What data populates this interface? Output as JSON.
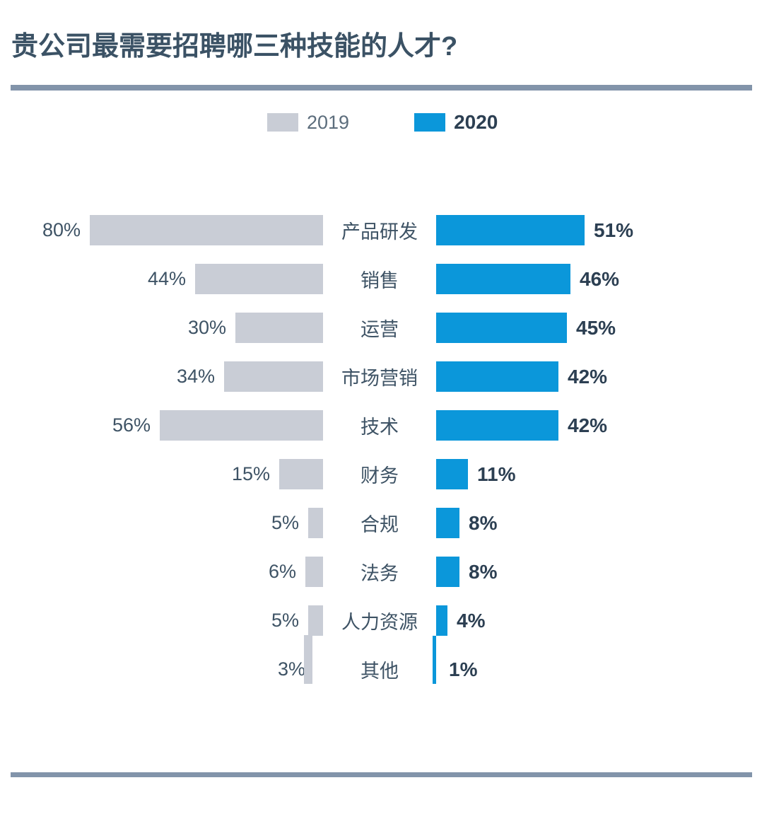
{
  "chart_data": {
    "type": "bar",
    "orientation": "horizontal-paired-back-to-back",
    "title": "贵公司最需要招聘哪三种技能的人才?",
    "categories": [
      "产品研发",
      "销售",
      "运营",
      "市场营销",
      "技术",
      "财务",
      "合规",
      "法务",
      "人力资源",
      "其他"
    ],
    "series": [
      {
        "name": "2019",
        "color": "#c9cdd6",
        "values": [
          80,
          44,
          30,
          34,
          56,
          15,
          5,
          6,
          5,
          3
        ]
      },
      {
        "name": "2020",
        "color": "#0b97da",
        "values": [
          51,
          46,
          45,
          42,
          42,
          11,
          8,
          8,
          4,
          1
        ]
      }
    ],
    "value_suffix": "%",
    "xlabel": "",
    "ylabel": "",
    "xlim_percent": [
      0,
      80
    ],
    "grid": false,
    "axes_visible": false,
    "legend_position": "top-center",
    "value_labels": "outside-bar-ends"
  },
  "colors": {
    "bar_2019": "#c9cdd6",
    "bar_2020": "#0b97da",
    "title_text": "#3b5265",
    "category_text": "#3e5365",
    "value_2019_text": "#3e5365",
    "value_2020_text": "#2c3f52",
    "legend_2019_text": "#5c6d7c",
    "legend_2020_text": "#2c3f52",
    "divider": "#8294aa",
    "background": "#ffffff"
  }
}
